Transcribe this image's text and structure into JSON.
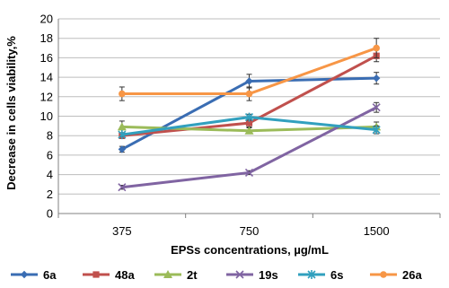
{
  "chart_data": {
    "type": "line",
    "title": "",
    "xlabel": "EPSs concentrations, µg/mL",
    "ylabel": "Decrease in cells  viability,%",
    "categories": [
      "375",
      "750",
      "1500"
    ],
    "ylim": [
      0,
      20
    ],
    "yticks": [
      "0",
      "2",
      "4",
      "6",
      "8",
      "10",
      "12",
      "14",
      "16",
      "18",
      "20"
    ],
    "grid": true,
    "legend_position": "bottom",
    "error_bars": true,
    "series": [
      {
        "name": "6a",
        "color": "#3a6db3",
        "marker": "diamond",
        "values": [
          6.6,
          13.6,
          13.9
        ],
        "errors": [
          0.3,
          0.7,
          0.6
        ]
      },
      {
        "name": "48a",
        "color": "#c0504d",
        "marker": "square",
        "values": [
          8.0,
          9.3,
          16.2
        ],
        "errors": [
          0.3,
          0.4,
          0.6
        ]
      },
      {
        "name": "2t",
        "color": "#9bbb59",
        "marker": "triangle",
        "values": [
          8.9,
          8.5,
          8.9
        ],
        "errors": [
          0.6,
          0.3,
          0.5
        ]
      },
      {
        "name": "19s",
        "color": "#8064a2",
        "marker": "x",
        "values": [
          2.7,
          4.2,
          10.9
        ],
        "errors": [
          0.2,
          0.2,
          0.5
        ]
      },
      {
        "name": "6s",
        "color": "#31a0be",
        "marker": "star",
        "values": [
          8.1,
          9.9,
          8.6
        ],
        "errors": [
          0.2,
          0.3,
          0.4
        ]
      },
      {
        "name": "26a",
        "color": "#f79646",
        "marker": "circle",
        "values": [
          12.3,
          12.3,
          17.0
        ],
        "errors": [
          0.7,
          0.7,
          1.0
        ]
      }
    ]
  }
}
